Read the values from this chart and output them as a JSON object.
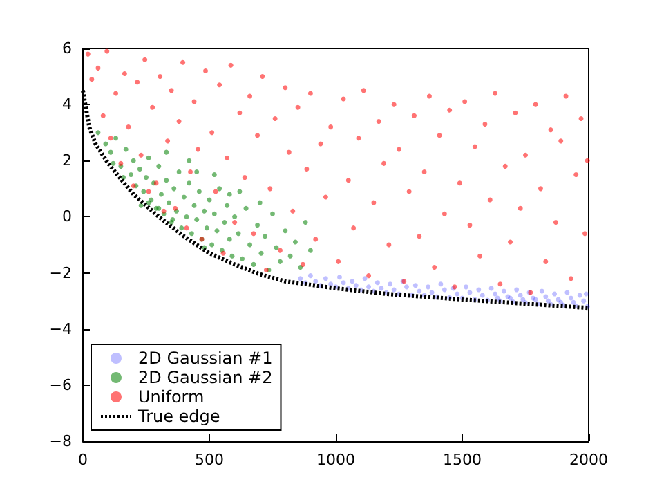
{
  "chart_data": {
    "type": "scatter",
    "xlim": [
      0,
      2000
    ],
    "ylim": [
      -8,
      6
    ],
    "xticks": [
      0,
      500,
      1000,
      1500,
      2000
    ],
    "yticks": [
      -8,
      -6,
      -4,
      -2,
      0,
      2,
      4,
      6
    ],
    "grid": false,
    "legend": "bottom left",
    "marker": "circle",
    "series": [
      {
        "name": "2D Gaussian #1",
        "color": "#0000ff",
        "x": [
          860,
          880,
          900,
          920,
          940,
          960,
          980,
          1000,
          1015,
          1030,
          1050,
          1065,
          1080,
          1100,
          1115,
          1130,
          1150,
          1165,
          1180,
          1200,
          1215,
          1230,
          1250,
          1265,
          1280,
          1300,
          1315,
          1330,
          1350,
          1365,
          1380,
          1400,
          1415,
          1430,
          1450,
          1465,
          1480,
          1500,
          1515,
          1530,
          1550,
          1565,
          1580,
          1600,
          1615,
          1630,
          1650,
          1665,
          1680,
          1700,
          1715,
          1730,
          1750,
          1765,
          1780,
          1800,
          1815,
          1830,
          1850,
          1865,
          1880,
          1900,
          1915,
          1930,
          1950,
          1965,
          1980,
          1995,
          1990,
          1940,
          1890,
          1840,
          1790,
          1740,
          1690,
          1640
        ],
        "values": [
          -2.2,
          -2.35,
          -2.1,
          -2.3,
          -2.45,
          -2.2,
          -2.4,
          -2.5,
          -2.15,
          -2.35,
          -2.55,
          -2.3,
          -2.45,
          -2.6,
          -2.2,
          -2.5,
          -2.65,
          -2.35,
          -2.55,
          -2.7,
          -2.4,
          -2.6,
          -2.75,
          -2.3,
          -2.5,
          -2.78,
          -2.45,
          -2.65,
          -2.8,
          -2.5,
          -2.7,
          -2.85,
          -2.4,
          -2.6,
          -2.88,
          -2.55,
          -2.75,
          -2.9,
          -2.5,
          -2.7,
          -2.95,
          -2.6,
          -2.8,
          -2.97,
          -2.55,
          -2.75,
          -3.0,
          -2.65,
          -2.85,
          -3.03,
          -2.6,
          -2.8,
          -3.06,
          -2.7,
          -2.9,
          -3.1,
          -2.65,
          -2.85,
          -3.12,
          -2.75,
          -2.95,
          -3.15,
          -2.7,
          -2.9,
          -3.18,
          -2.8,
          -3.0,
          -3.2,
          -2.75,
          -3.05,
          -3.05,
          -3.0,
          -2.95,
          -2.95,
          -2.9,
          -2.9
        ]
      },
      {
        "name": "2D Gaussian #2",
        "color": "#008000",
        "x": [
          60,
          90,
          110,
          130,
          150,
          170,
          190,
          200,
          210,
          225,
          240,
          250,
          260,
          270,
          280,
          290,
          300,
          310,
          320,
          330,
          340,
          350,
          360,
          370,
          380,
          390,
          400,
          410,
          420,
          430,
          440,
          450,
          460,
          470,
          480,
          490,
          500,
          510,
          520,
          530,
          540,
          550,
          560,
          570,
          580,
          590,
          600,
          615,
          630,
          645,
          660,
          675,
          690,
          705,
          720,
          735,
          750,
          765,
          780,
          800,
          820,
          840,
          860,
          880,
          900,
          230,
          260,
          300,
          330,
          355,
          420,
          450,
          480,
          520,
          580,
          620,
          700,
          120,
          160
        ],
        "values": [
          3.0,
          2.6,
          2.3,
          2.8,
          1.8,
          2.4,
          1.5,
          2.0,
          1.1,
          1.7,
          0.9,
          1.4,
          2.1,
          0.6,
          1.2,
          0.3,
          1.8,
          0.8,
          0.1,
          1.3,
          0.5,
          -0.2,
          1.0,
          0.2,
          1.6,
          -0.4,
          0.7,
          0.0,
          1.2,
          -0.6,
          0.4,
          -0.1,
          0.9,
          -0.8,
          0.2,
          -0.4,
          0.6,
          -1.0,
          0.1,
          -0.5,
          1.0,
          -1.2,
          -0.2,
          0.4,
          -0.8,
          -1.4,
          0.0,
          -0.6,
          -1.5,
          0.3,
          -1.0,
          -1.7,
          -0.3,
          -1.3,
          -0.7,
          -1.9,
          0.1,
          -1.1,
          -1.6,
          -0.5,
          -1.4,
          -0.9,
          -1.8,
          -0.2,
          -1.2,
          0.4,
          0.5,
          0.3,
          2.3,
          -0.1,
          2.0,
          1.6,
          -1.1,
          1.5,
          0.8,
          0.9,
          0.5,
          1.9,
          1.4
        ]
      },
      {
        "name": "Uniform",
        "color": "#ff0000",
        "x": [
          20,
          35,
          60,
          80,
          95,
          110,
          130,
          150,
          165,
          180,
          200,
          215,
          230,
          245,
          260,
          275,
          290,
          305,
          320,
          335,
          350,
          365,
          380,
          395,
          410,
          425,
          440,
          455,
          470,
          485,
          510,
          525,
          540,
          555,
          570,
          585,
          600,
          620,
          640,
          660,
          675,
          690,
          710,
          725,
          740,
          760,
          780,
          800,
          815,
          830,
          850,
          870,
          885,
          900,
          920,
          940,
          960,
          980,
          1010,
          1030,
          1050,
          1070,
          1090,
          1110,
          1130,
          1150,
          1170,
          1190,
          1210,
          1230,
          1250,
          1270,
          1290,
          1310,
          1330,
          1350,
          1370,
          1390,
          1410,
          1430,
          1450,
          1470,
          1490,
          1510,
          1530,
          1550,
          1570,
          1590,
          1610,
          1630,
          1650,
          1670,
          1690,
          1710,
          1730,
          1750,
          1770,
          1790,
          1810,
          1830,
          1850,
          1870,
          1890,
          1910,
          1930,
          1950,
          1970,
          1985,
          1995
        ],
        "values": [
          5.8,
          4.9,
          5.3,
          3.6,
          5.9,
          2.8,
          4.4,
          1.9,
          5.1,
          3.2,
          1.1,
          4.8,
          2.2,
          5.6,
          0.9,
          3.9,
          1.2,
          5.0,
          0.2,
          2.7,
          4.5,
          0.3,
          3.4,
          5.5,
          -0.4,
          1.6,
          4.1,
          2.4,
          -0.8,
          5.2,
          3.0,
          0.9,
          4.7,
          -1.3,
          2.1,
          5.4,
          -0.2,
          3.7,
          1.4,
          4.3,
          -0.6,
          2.9,
          5.0,
          -1.9,
          1.0,
          3.5,
          -1.2,
          4.6,
          2.3,
          0.2,
          3.9,
          -1.7,
          1.7,
          4.4,
          -0.8,
          2.6,
          0.7,
          3.2,
          -1.6,
          4.2,
          1.3,
          -0.4,
          2.8,
          4.5,
          -2.1,
          0.5,
          3.4,
          1.9,
          -1.0,
          4.0,
          2.4,
          -2.3,
          0.9,
          3.6,
          -0.7,
          1.6,
          4.3,
          -1.8,
          2.9,
          0.1,
          3.8,
          -2.5,
          1.2,
          4.1,
          -0.3,
          2.5,
          -1.4,
          3.3,
          0.6,
          4.4,
          -2.4,
          1.8,
          -0.9,
          3.7,
          0.3,
          2.2,
          -2.7,
          4.0,
          1.0,
          -1.6,
          3.1,
          -0.2,
          2.7,
          4.3,
          -2.2,
          1.5,
          3.5,
          -0.6,
          2.0
        ]
      },
      {
        "name": "True edge",
        "type": "line",
        "color": "#000000",
        "marker": "none",
        "line_style": "dotted",
        "x": [
          0,
          25,
          50,
          100,
          200,
          300,
          400,
          500,
          600,
          700,
          800,
          1000,
          1200,
          1500,
          1750,
          2000
        ],
        "values": [
          4.5,
          3.2,
          2.6,
          1.9,
          0.8,
          0.0,
          -0.7,
          -1.3,
          -1.7,
          -2.05,
          -2.3,
          -2.55,
          -2.75,
          -2.95,
          -3.1,
          -3.25
        ]
      }
    ]
  }
}
